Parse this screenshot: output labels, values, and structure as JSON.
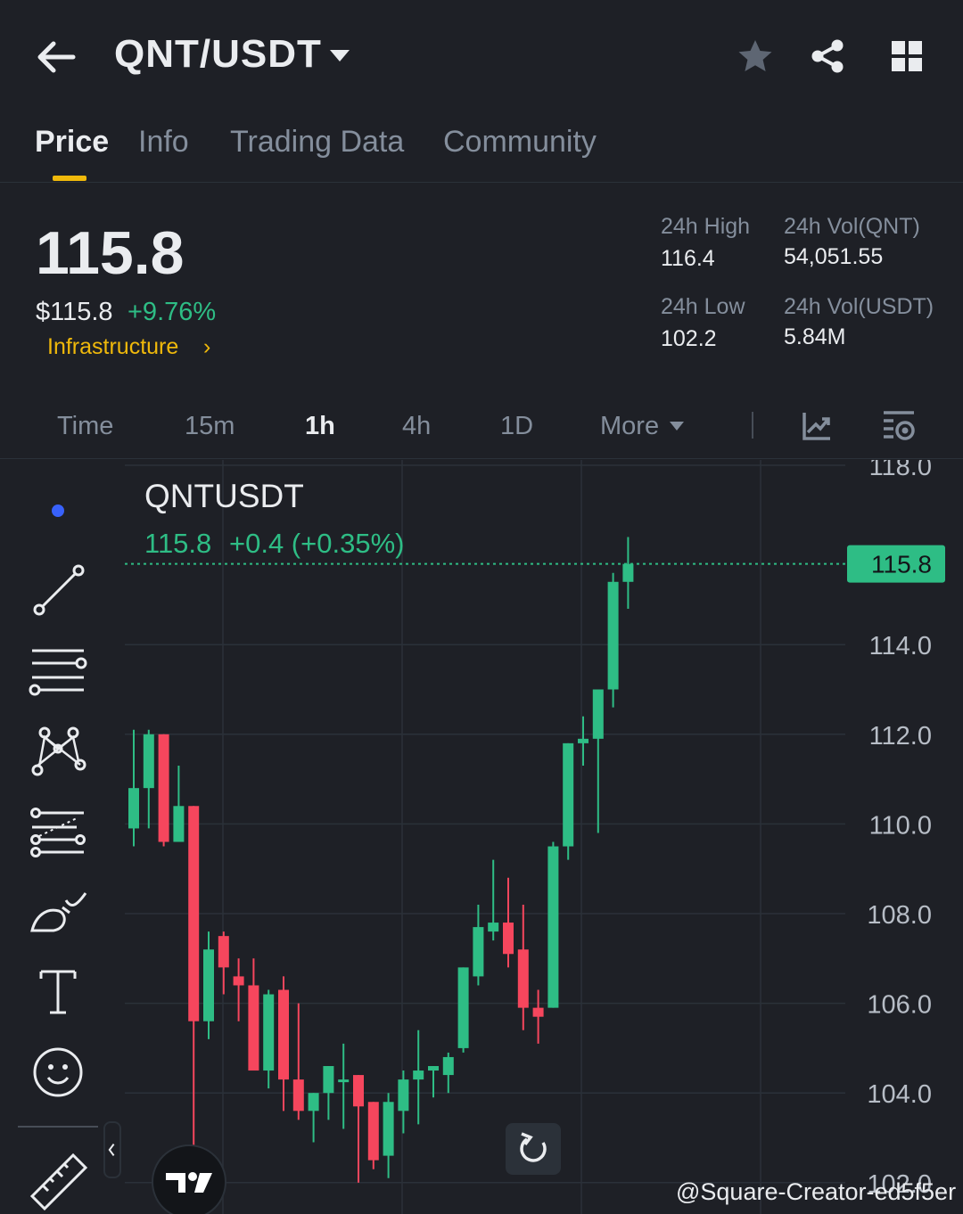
{
  "header": {
    "title": "QNT/USDT",
    "back_icon": "arrow-left-icon",
    "star_icon": "star-icon",
    "share_icon": "share-icon",
    "grid_icon": "grid-icon"
  },
  "tabs": [
    {
      "label": "Price",
      "active": true
    },
    {
      "label": "Info",
      "active": false
    },
    {
      "label": "Trading Data",
      "active": false
    },
    {
      "label": "Community",
      "active": false
    }
  ],
  "price": {
    "last": "115.8",
    "usd": "$115.8",
    "change": "+9.76%",
    "tag": "Infrastructure",
    "tag_arrow": "›"
  },
  "stats": {
    "high_label": "24h High",
    "high_value": "116.4",
    "low_label": "24h Low",
    "low_value": "102.2",
    "vol_qnt_label": "24h Vol(QNT)",
    "vol_qnt_value": "54,051.55",
    "vol_usdt_label": "24h Vol(USDT)",
    "vol_usdt_value": "5.84M"
  },
  "intervals": {
    "items": [
      {
        "label": "Time",
        "active": false
      },
      {
        "label": "15m",
        "active": false
      },
      {
        "label": "1h",
        "active": true
      },
      {
        "label": "4h",
        "active": false
      },
      {
        "label": "1D",
        "active": false
      },
      {
        "label": "More",
        "active": false
      }
    ],
    "indicator_icon": "chart-indicator-icon",
    "settings_icon": "chart-settings-icon"
  },
  "colors": {
    "up": "#2ebd85",
    "down": "#f6465d",
    "accent": "#f0b90b",
    "background": "#1e2026"
  },
  "chart_data": {
    "type": "candlestick",
    "symbol": "QNTUSDT",
    "legend_price": "115.8",
    "legend_change": "+0.4 (+0.35%)",
    "last_price_label": "115.8",
    "last_price": 115.8,
    "y_ticks": [
      "118.0",
      "114.0",
      "112.0",
      "110.0",
      "108.0",
      "106.0",
      "104.0",
      "102.0"
    ],
    "ylim": [
      101.6,
      118.0
    ],
    "grid": true,
    "candles": [
      {
        "o": 109.9,
        "h": 112.1,
        "l": 109.5,
        "c": 110.8
      },
      {
        "o": 110.8,
        "h": 112.1,
        "l": 109.9,
        "c": 112.0
      },
      {
        "o": 112.0,
        "h": 112.0,
        "l": 109.5,
        "c": 109.6
      },
      {
        "o": 109.6,
        "h": 111.3,
        "l": 109.6,
        "c": 110.4
      },
      {
        "o": 110.4,
        "h": 110.4,
        "l": 101.6,
        "c": 105.6
      },
      {
        "o": 105.6,
        "h": 107.6,
        "l": 105.2,
        "c": 107.2
      },
      {
        "o": 107.5,
        "h": 107.6,
        "l": 106.2,
        "c": 106.8
      },
      {
        "o": 106.6,
        "h": 107.0,
        "l": 105.6,
        "c": 106.4
      },
      {
        "o": 106.4,
        "h": 107.0,
        "l": 104.5,
        "c": 104.5
      },
      {
        "o": 104.5,
        "h": 106.3,
        "l": 104.1,
        "c": 106.2
      },
      {
        "o": 106.3,
        "h": 106.6,
        "l": 103.6,
        "c": 104.3
      },
      {
        "o": 104.3,
        "h": 106.0,
        "l": 103.4,
        "c": 103.6
      },
      {
        "o": 103.6,
        "h": 104.0,
        "l": 102.9,
        "c": 104.0
      },
      {
        "o": 104.0,
        "h": 104.6,
        "l": 103.4,
        "c": 104.6
      },
      {
        "o": 104.3,
        "h": 105.1,
        "l": 103.2,
        "c": 104.3
      },
      {
        "o": 104.4,
        "h": 104.4,
        "l": 102.0,
        "c": 103.7
      },
      {
        "o": 103.8,
        "h": 103.8,
        "l": 102.3,
        "c": 102.5
      },
      {
        "o": 102.6,
        "h": 104.0,
        "l": 102.1,
        "c": 103.8
      },
      {
        "o": 103.6,
        "h": 104.5,
        "l": 103.1,
        "c": 104.3
      },
      {
        "o": 104.3,
        "h": 105.4,
        "l": 103.3,
        "c": 104.5
      },
      {
        "o": 104.5,
        "h": 104.6,
        "l": 103.9,
        "c": 104.6
      },
      {
        "o": 104.4,
        "h": 104.9,
        "l": 104.0,
        "c": 104.8
      },
      {
        "o": 105.0,
        "h": 106.8,
        "l": 104.9,
        "c": 106.8
      },
      {
        "o": 106.6,
        "h": 108.2,
        "l": 106.4,
        "c": 107.7
      },
      {
        "o": 107.6,
        "h": 109.2,
        "l": 107.4,
        "c": 107.8
      },
      {
        "o": 107.8,
        "h": 108.8,
        "l": 106.8,
        "c": 107.1
      },
      {
        "o": 107.2,
        "h": 108.2,
        "l": 105.4,
        "c": 105.9
      },
      {
        "o": 105.9,
        "h": 106.3,
        "l": 105.1,
        "c": 105.7
      },
      {
        "o": 105.9,
        "h": 109.6,
        "l": 105.9,
        "c": 109.5
      },
      {
        "o": 109.5,
        "h": 111.8,
        "l": 109.2,
        "c": 111.8
      },
      {
        "o": 111.8,
        "h": 112.4,
        "l": 111.3,
        "c": 111.9
      },
      {
        "o": 111.9,
        "h": 113.0,
        "l": 109.8,
        "c": 113.0
      },
      {
        "o": 113.0,
        "h": 115.6,
        "l": 112.6,
        "c": 115.4
      },
      {
        "o": 115.4,
        "h": 116.4,
        "l": 114.8,
        "c": 115.8
      }
    ]
  },
  "toolbar": {
    "tools": [
      "dot-indicator",
      "trend-line-icon",
      "horizontal-lines-icon",
      "pattern-icon",
      "fib-icon",
      "brush-icon",
      "text-icon",
      "emoji-icon",
      "ruler-icon"
    ]
  },
  "watermark": "@Square-Creator-ed5f5er",
  "logo_text": "TV"
}
